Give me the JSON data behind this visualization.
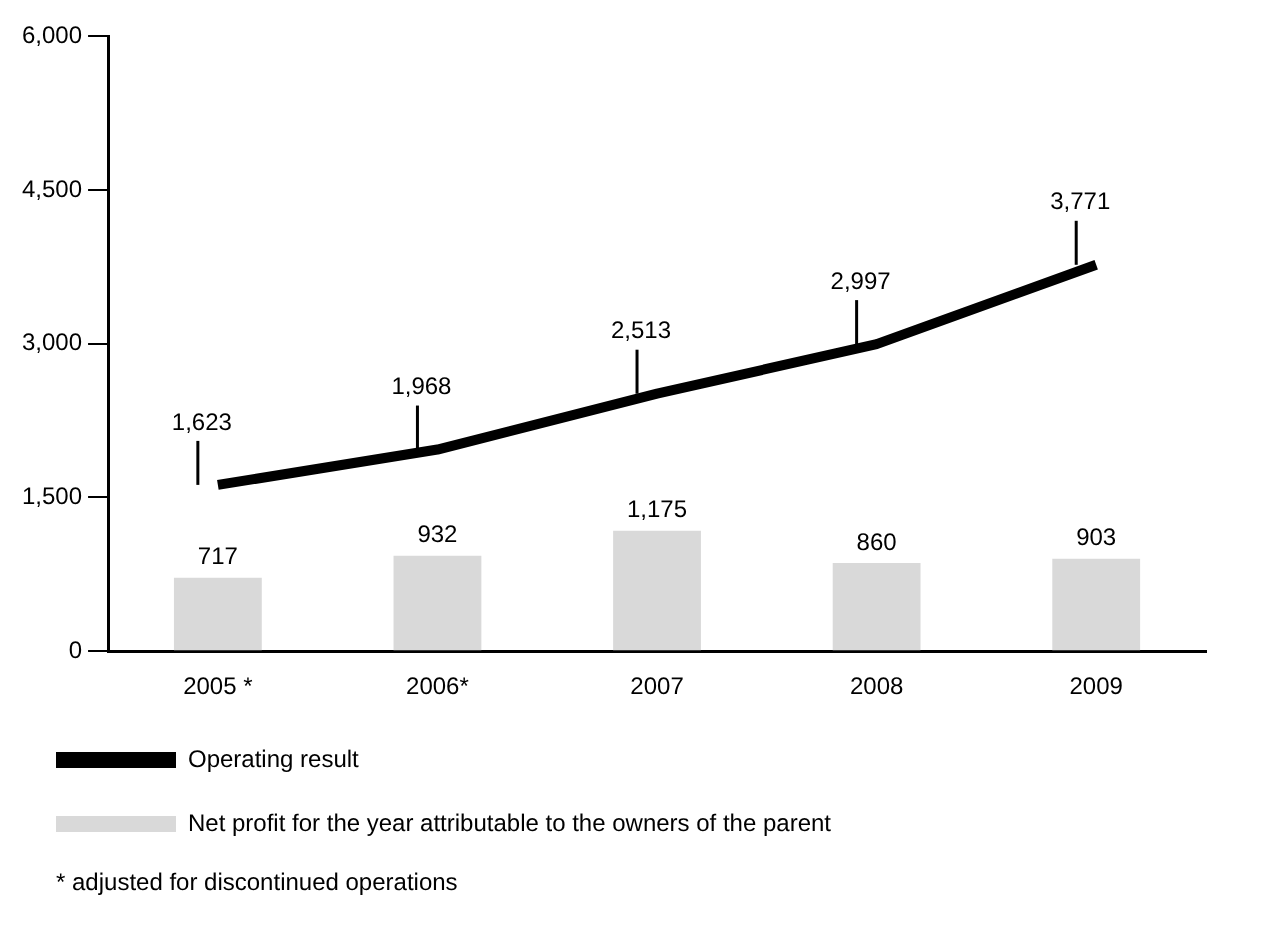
{
  "chart_data": {
    "type": "line",
    "categories": [
      "2005 *",
      "2006*",
      "2007",
      "2008",
      "2009"
    ],
    "series": [
      {
        "name": "Operating result",
        "color": "#000000",
        "values": [
          1623,
          1968,
          2513,
          2997,
          3771
        ],
        "value_labels": [
          "1,623",
          "1,968",
          "2,513",
          "2,997",
          "3,771"
        ]
      },
      {
        "name": "Net profit for the year attributable to the owners of the parent",
        "type": "bar",
        "color": "#d9d9d9",
        "values": [
          717,
          932,
          1175,
          860,
          903
        ],
        "value_labels": [
          "717",
          "932",
          "1,175",
          "860",
          "903"
        ]
      }
    ],
    "ylim": [
      0,
      6000
    ],
    "yticks": [
      {
        "value": 0,
        "label": "0"
      },
      {
        "value": 1500,
        "label": "1,500"
      },
      {
        "value": 3000,
        "label": "3,000"
      },
      {
        "value": 4500,
        "label": "4,500"
      },
      {
        "value": 6000,
        "label": "6,000"
      }
    ],
    "grid": false,
    "legend": "bottom",
    "marker": "none",
    "line_style": "solid",
    "annotations": [
      "* adjusted for discontinued operations"
    ]
  }
}
